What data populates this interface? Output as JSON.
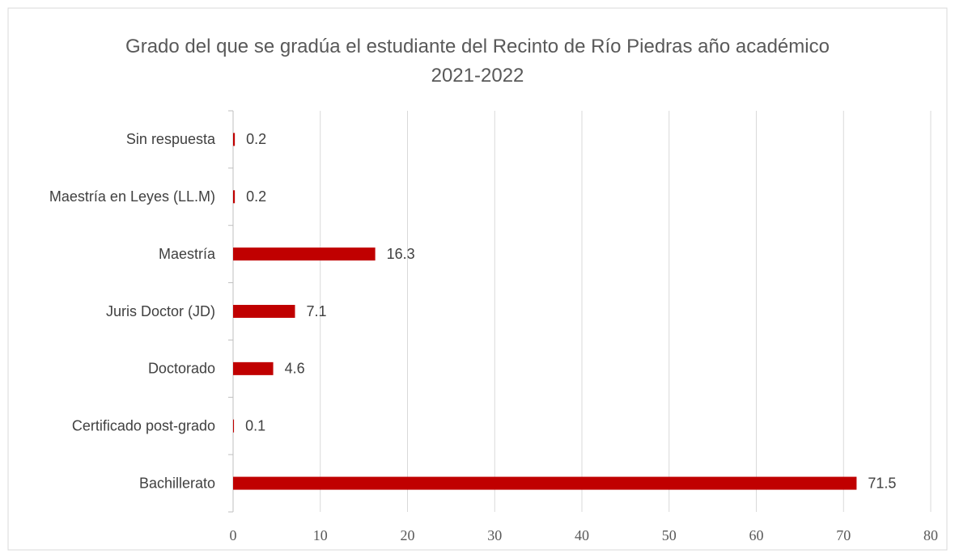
{
  "chart_data": {
    "type": "bar",
    "orientation": "horizontal",
    "title": "Grado del que se gradúa el estudiante del Recinto de Río Piedras año académico 2021-2022",
    "categories": [
      "Bachillerato",
      "Certificado post-grado",
      "Doctorado",
      "Juris Doctor (JD)",
      "Maestría",
      "Maestría en Leyes (LL.M)",
      "Sin respuesta"
    ],
    "values": [
      71.5,
      0.1,
      4.6,
      7.1,
      16.3,
      0.2,
      0.2
    ],
    "color": "#c00000",
    "xlim": [
      0,
      80
    ],
    "xticks": [
      0,
      10,
      20,
      30,
      40,
      50,
      60,
      70,
      80
    ],
    "grid": true
  }
}
